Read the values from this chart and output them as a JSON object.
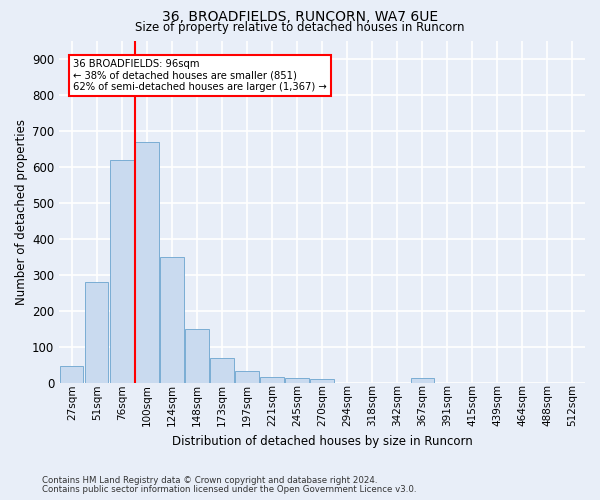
{
  "title1": "36, BROADFIELDS, RUNCORN, WA7 6UE",
  "title2": "Size of property relative to detached houses in Runcorn",
  "xlabel": "Distribution of detached houses by size in Runcorn",
  "ylabel": "Number of detached properties",
  "bar_color": "#c9daef",
  "bar_edge_color": "#7aadd4",
  "categories": [
    "27sqm",
    "51sqm",
    "76sqm",
    "100sqm",
    "124sqm",
    "148sqm",
    "173sqm",
    "197sqm",
    "221sqm",
    "245sqm",
    "270sqm",
    "294sqm",
    "318sqm",
    "342sqm",
    "367sqm",
    "391sqm",
    "415sqm",
    "439sqm",
    "464sqm",
    "488sqm",
    "512sqm"
  ],
  "values": [
    46,
    280,
    620,
    670,
    348,
    150,
    68,
    32,
    17,
    12,
    10,
    0,
    0,
    0,
    12,
    0,
    0,
    0,
    0,
    0,
    0
  ],
  "annotation_line1": "36 BROADFIELDS: 96sqm",
  "annotation_line2": "← 38% of detached houses are smaller (851)",
  "annotation_line3": "62% of semi-detached houses are larger (1,367) →",
  "vline_color": "red",
  "vline_x_index": 2.54,
  "ylim": [
    0,
    950
  ],
  "yticks": [
    0,
    100,
    200,
    300,
    400,
    500,
    600,
    700,
    800,
    900
  ],
  "footnote1": "Contains HM Land Registry data © Crown copyright and database right 2024.",
  "footnote2": "Contains public sector information licensed under the Open Government Licence v3.0.",
  "bg_color": "#e8eef8",
  "grid_color": "white"
}
